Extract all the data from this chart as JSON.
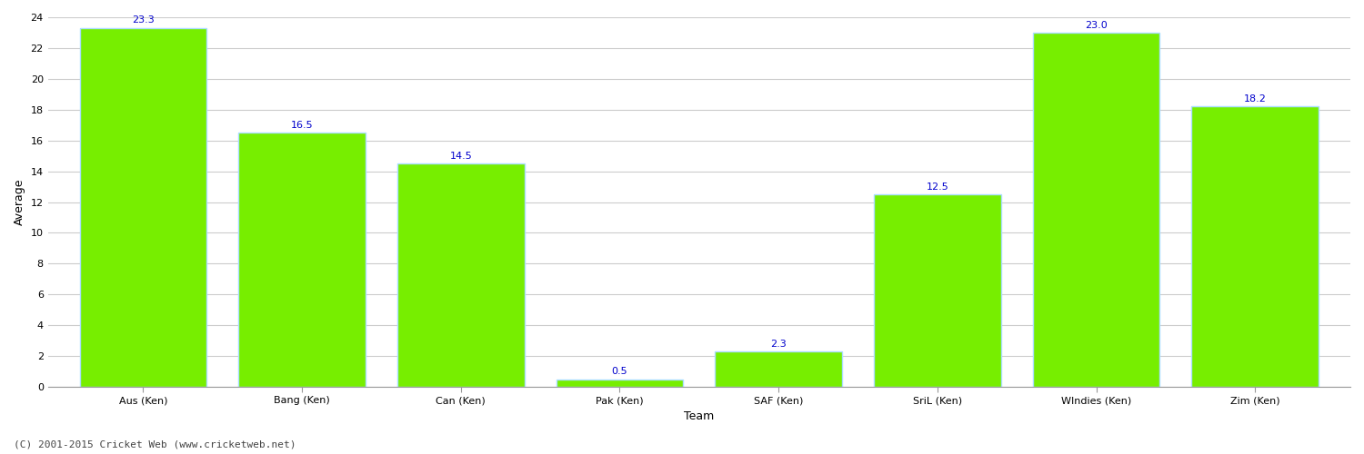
{
  "categories": [
    "Aus (Ken)",
    "Bang (Ken)",
    "Can (Ken)",
    "Pak (Ken)",
    "SAF (Ken)",
    "SriL (Ken)",
    "WIndies (Ken)",
    "Zim (Ken)"
  ],
  "values": [
    23.3,
    16.5,
    14.5,
    0.5,
    2.3,
    12.5,
    23.0,
    18.2
  ],
  "bar_color": "#77ee00",
  "bar_edge_color": "#aaddff",
  "value_label_color": "#0000cc",
  "xlabel": "Team",
  "ylabel": "Average",
  "ylim": [
    0,
    24
  ],
  "yticks": [
    0,
    2,
    4,
    6,
    8,
    10,
    12,
    14,
    16,
    18,
    20,
    22,
    24
  ],
  "grid_color": "#cccccc",
  "background_color": "#ffffff",
  "footer_text": "(C) 2001-2015 Cricket Web (www.cricketweb.net)",
  "axis_label_fontsize": 9,
  "tick_fontsize": 8,
  "value_fontsize": 8,
  "footer_fontsize": 8,
  "bar_width": 0.8
}
